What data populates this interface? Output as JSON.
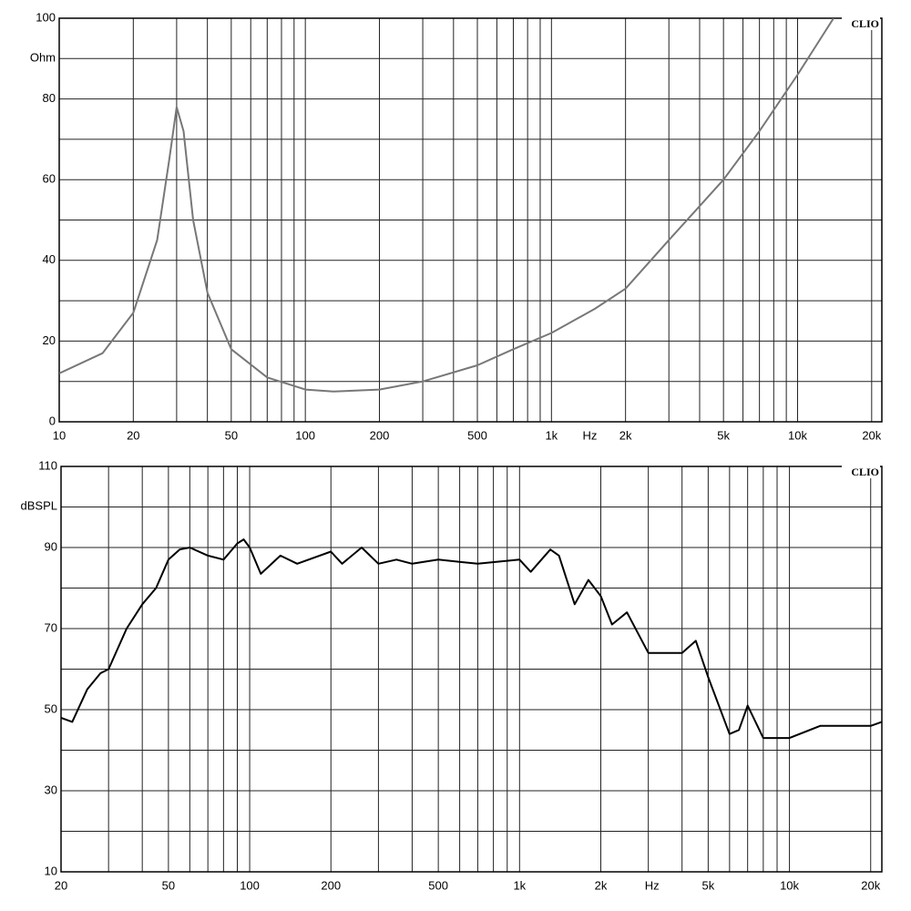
{
  "chart_data": [
    {
      "type": "line",
      "watermark": "CLIO",
      "x_label": "Hz",
      "y_label": "Ohm",
      "log_x": true,
      "grid": true,
      "xlim": [
        10,
        22000
      ],
      "ylim": [
        0,
        100
      ],
      "xticks": [
        10,
        20,
        50,
        100,
        200,
        500,
        {
          "value": 1000,
          "label": "1k"
        },
        {
          "value": 2000,
          "label": "2k"
        },
        {
          "value": 5000,
          "label": "5k"
        },
        {
          "value": 10000,
          "label": "10k"
        },
        {
          "value": 20000,
          "label": "20k"
        }
      ],
      "x_minor_grid": [
        30,
        40,
        60,
        70,
        80,
        90,
        300,
        400,
        600,
        700,
        800,
        900,
        3000,
        4000,
        6000,
        7000,
        8000,
        9000
      ],
      "yticks": [
        0,
        20,
        40,
        60,
        80,
        100
      ],
      "y_minor_grid": [
        10,
        30,
        50,
        70,
        90
      ],
      "series": [
        {
          "color": "#777777",
          "x": [
            10,
            15,
            20,
            25,
            28,
            30,
            32,
            35,
            40,
            50,
            70,
            100,
            130,
            200,
            300,
            500,
            700,
            1000,
            1500,
            2000,
            3000,
            5000,
            7000,
            10000,
            14000
          ],
          "values": [
            12,
            17,
            27,
            45,
            65,
            78,
            72,
            50,
            32,
            18,
            11,
            8,
            7.5,
            8,
            10,
            14,
            18,
            22,
            28,
            33,
            45,
            60,
            72,
            86,
            100
          ]
        }
      ]
    },
    {
      "type": "line",
      "watermark": "CLIO",
      "x_label": "Hz",
      "y_label": "dBSPL",
      "log_x": true,
      "grid": true,
      "xlim": [
        20,
        22000
      ],
      "ylim": [
        10,
        110
      ],
      "xticks": [
        20,
        50,
        100,
        200,
        500,
        {
          "value": 1000,
          "label": "1k"
        },
        {
          "value": 2000,
          "label": "2k"
        },
        {
          "value": 5000,
          "label": "5k"
        },
        {
          "value": 10000,
          "label": "10k"
        },
        {
          "value": 20000,
          "label": "20k"
        }
      ],
      "x_minor_grid": [
        30,
        40,
        60,
        70,
        80,
        90,
        300,
        400,
        600,
        700,
        800,
        900,
        3000,
        4000,
        6000,
        7000,
        8000,
        9000
      ],
      "yticks": [
        10,
        30,
        50,
        70,
        90,
        110
      ],
      "y_minor_grid": [
        20,
        40,
        60,
        80,
        100
      ],
      "series": [
        {
          "color": "#000000",
          "x": [
            20,
            22,
            25,
            28,
            30,
            35,
            40,
            45,
            50,
            55,
            60,
            70,
            80,
            90,
            95,
            100,
            110,
            130,
            150,
            200,
            220,
            260,
            300,
            350,
            400,
            500,
            700,
            1000,
            1100,
            1300,
            1400,
            1600,
            1800,
            2000,
            2200,
            2500,
            3000,
            4000,
            4500,
            5000,
            6000,
            6500,
            7000,
            8000,
            10000,
            13000,
            20000,
            22000
          ],
          "values": [
            48,
            47,
            55,
            59,
            60,
            70,
            76,
            80,
            87,
            89.5,
            90,
            88,
            87,
            91,
            92,
            90,
            83.5,
            88,
            86,
            89,
            86,
            90,
            86,
            87,
            86,
            87,
            86,
            87,
            84,
            89.5,
            88,
            76,
            82,
            78,
            71,
            74,
            64,
            64,
            67,
            58,
            44,
            45,
            51,
            43,
            43,
            46,
            46,
            47
          ]
        }
      ]
    }
  ]
}
